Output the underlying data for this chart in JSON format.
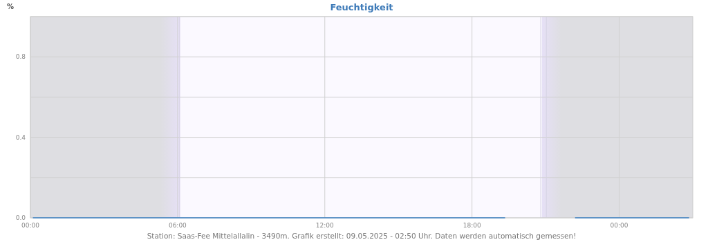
{
  "chart_data": {
    "type": "line",
    "title": "Feuchtigkeit",
    "ylabel": "%",
    "annotations": [
      "Station: Saas-Fee Mittelallalin - 3490m. Grafik erstellt: 09.05.2025 - 02:50 Uhr. Daten werden automatisch gemessen!"
    ],
    "series": [
      {
        "color": "#3a7fc1",
        "x": [
          0.1,
          19.35,
          19.4,
          22.2,
          26.85
        ],
        "values": [
          0,
          0,
          null,
          0,
          0
        ]
      }
    ],
    "xlim": [
      0,
      27
    ],
    "xticks": [
      {
        "value": 0,
        "label": "00:00"
      },
      {
        "value": 6,
        "label": "06:00"
      },
      {
        "value": 12,
        "label": "12:00"
      },
      {
        "value": 18,
        "label": "18:00"
      },
      {
        "value": 24,
        "label": "00:00"
      }
    ],
    "ylim": [
      0,
      1
    ],
    "yticks": [
      {
        "value": 0,
        "label": "0.0"
      },
      {
        "value": 0.2,
        "label": null
      },
      {
        "value": 0.4,
        "label": "0.4"
      },
      {
        "value": 0.6,
        "label": null
      },
      {
        "value": 0.8,
        "label": "0.8"
      },
      {
        "value": 1,
        "label": null
      }
    ],
    "grid": true,
    "bands": [
      {
        "axis": "x",
        "from": 0,
        "to": 6.1,
        "color": "#dedee2"
      },
      {
        "axis": "x",
        "from": 20.85,
        "to": 27,
        "color": "#dedee2"
      }
    ],
    "ref_lines": [
      {
        "axis": "x",
        "value": 6.08,
        "color": "#d6d3e3"
      },
      {
        "axis": "x",
        "value": 20.8,
        "color": "#d6d3e3"
      },
      {
        "axis": "x",
        "value": 21.03,
        "color": "#d6d3e3"
      }
    ]
  }
}
